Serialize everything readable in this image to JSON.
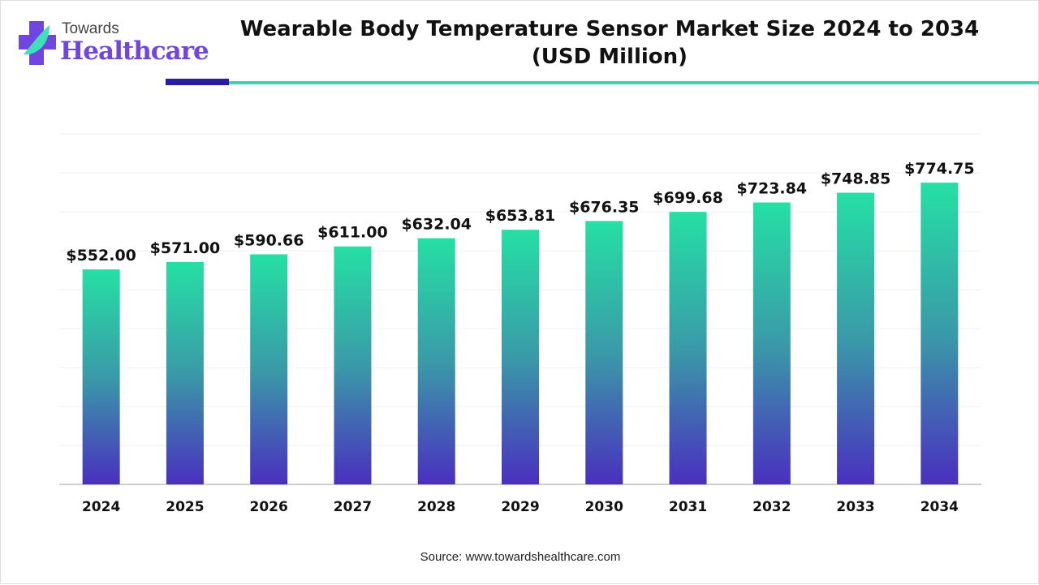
{
  "logo": {
    "line1": "Towards",
    "line2": "Healthcare"
  },
  "header": {
    "title_line1": "Wearable Body Temperature Sensor Market Size 2024 to 2034",
    "title_line2": "(USD Million)"
  },
  "colors": {
    "accent_dark": "#2a1aa8",
    "accent_teal": "#3ed3b0",
    "bar_top": "#25e0a4",
    "bar_mid": "#3a9aa8",
    "bar_bottom": "#4a2fbf"
  },
  "chart_data": {
    "type": "bar",
    "title": "Wearable Body Temperature Sensor Market Size 2024 to 2034 (USD Million)",
    "categories": [
      "2024",
      "2025",
      "2026",
      "2027",
      "2028",
      "2029",
      "2030",
      "2031",
      "2032",
      "2033",
      "2034"
    ],
    "values": [
      552.0,
      571.0,
      590.66,
      611.0,
      632.04,
      653.81,
      676.35,
      699.68,
      723.84,
      748.85,
      774.75
    ],
    "data_labels": [
      "$552.00",
      "$571.00",
      "$590.66",
      "$611.00",
      "$632.04",
      "$653.81",
      "$676.35",
      "$699.68",
      "$723.84",
      "$748.85",
      "$774.75"
    ],
    "xlabel": "",
    "ylabel": "",
    "ylim": [
      0,
      900
    ],
    "grid": true,
    "legend": "none"
  },
  "footer": {
    "source": "Source: www.towardshealthcare.com"
  }
}
